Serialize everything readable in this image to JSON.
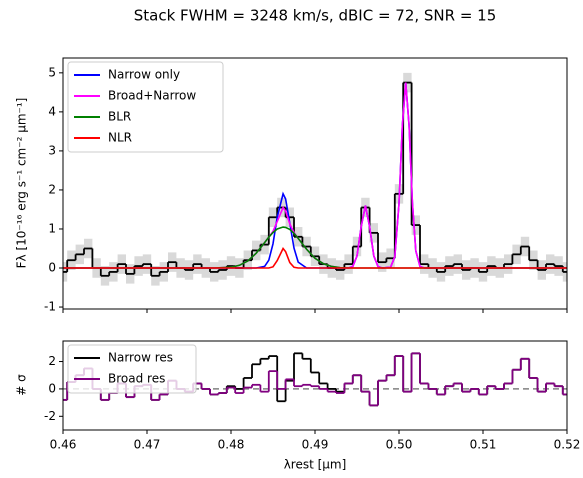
{
  "chart_data": [
    {
      "type": "line",
      "title": "Stack FWHM = 3248 km/s, dBIC = 72, SNR = 15",
      "y_label": "Fλ [10⁻¹⁶ erg s⁻¹ cm⁻² μm⁻¹]",
      "xlim": [
        0.46,
        0.52
      ],
      "ylim": [
        -1.05,
        5.38
      ],
      "yticks": [
        -1,
        0,
        1,
        2,
        3,
        4,
        5
      ],
      "legend": "upper left",
      "x": [
        0.46,
        0.476,
        0.478,
        0.48,
        0.481,
        0.482,
        0.483,
        0.484,
        0.4845,
        0.485,
        0.4855,
        0.4862,
        0.4865,
        0.487,
        0.4875,
        0.488,
        0.489,
        0.49,
        0.491,
        0.492,
        0.493,
        0.494,
        0.4945,
        0.495,
        0.4955,
        0.496,
        0.4965,
        0.497,
        0.4975,
        0.498,
        0.499,
        0.4995,
        0.5,
        0.5004,
        0.5008,
        0.5012,
        0.5016,
        0.502,
        0.5025,
        0.503,
        0.504,
        0.52
      ],
      "observed": {
        "color": "#000000",
        "error": 0.25,
        "x": [
          0.46,
          0.461,
          0.462,
          0.463,
          0.464,
          0.465,
          0.466,
          0.467,
          0.468,
          0.469,
          0.47,
          0.471,
          0.472,
          0.473,
          0.474,
          0.475,
          0.476,
          0.477,
          0.478,
          0.479,
          0.48,
          0.481,
          0.482,
          0.483,
          0.484,
          0.485,
          0.486,
          0.487,
          0.488,
          0.489,
          0.49,
          0.491,
          0.492,
          0.493,
          0.494,
          0.495,
          0.496,
          0.497,
          0.498,
          0.499,
          0.5,
          0.501,
          0.502,
          0.503,
          0.504,
          0.505,
          0.506,
          0.507,
          0.508,
          0.509,
          0.51,
          0.511,
          0.512,
          0.513,
          0.514,
          0.515,
          0.516,
          0.517,
          0.518,
          0.519,
          0.52
        ],
        "values": [
          -0.1,
          0.2,
          0.35,
          0.5,
          0.0,
          -0.2,
          -0.1,
          0.1,
          -0.15,
          0.05,
          0.1,
          -0.2,
          -0.1,
          0.15,
          0.0,
          -0.05,
          0.1,
          0.0,
          -0.1,
          -0.05,
          0.05,
          0.0,
          0.2,
          0.45,
          0.6,
          1.3,
          1.55,
          1.3,
          0.8,
          0.55,
          0.3,
          0.1,
          0.0,
          -0.05,
          0.1,
          0.55,
          1.55,
          0.9,
          0.15,
          0.25,
          1.9,
          4.75,
          1.1,
          0.1,
          0.0,
          -0.1,
          0.05,
          0.1,
          -0.05,
          0.0,
          -0.1,
          0.05,
          0.0,
          0.1,
          0.35,
          0.55,
          0.2,
          -0.05,
          0.1,
          0.05,
          -0.1
        ]
      },
      "series": [
        {
          "name": "Narrow only",
          "color": "#0000ff",
          "values": [
            0,
            0,
            0,
            0,
            0,
            0,
            0,
            0.04,
            0.2,
            0.62,
            1.3,
            1.9,
            1.77,
            1.15,
            0.51,
            0.15,
            0,
            0,
            0,
            0,
            0,
            0,
            0.04,
            0.31,
            1.06,
            1.6,
            1.06,
            0.31,
            0.04,
            0,
            0.02,
            0.29,
            1.65,
            3.65,
            4.75,
            3.65,
            1.65,
            0.44,
            0.04,
            0,
            0,
            0
          ]
        },
        {
          "name": "Broad+Narrow",
          "color": "#ff00ff",
          "values": [
            0,
            0,
            0,
            0.02,
            0.07,
            0.18,
            0.38,
            0.65,
            0.79,
            0.94,
            1.19,
            1.55,
            1.46,
            1.13,
            0.91,
            0.76,
            0.48,
            0.25,
            0.11,
            0.04,
            0.01,
            0,
            0.04,
            0.31,
            1.06,
            1.6,
            1.06,
            0.31,
            0.04,
            0,
            0.02,
            0.29,
            1.65,
            3.65,
            4.75,
            3.65,
            1.65,
            0.44,
            0.04,
            0,
            0,
            0
          ]
        },
        {
          "name": "BLR",
          "color": "#008000",
          "values": [
            0,
            0,
            0,
            0.02,
            0.07,
            0.18,
            0.38,
            0.65,
            0.79,
            0.91,
            1.0,
            1.05,
            1.04,
            0.99,
            0.89,
            0.76,
            0.48,
            0.25,
            0.11,
            0.04,
            0.01,
            0,
            0,
            0,
            0,
            0,
            0,
            0,
            0,
            0,
            0,
            0,
            0,
            0,
            0,
            0,
            0,
            0,
            0,
            0,
            0,
            0
          ]
        },
        {
          "name": "NLR",
          "color": "#ff0000",
          "values": [
            0,
            0,
            0,
            0,
            0,
            0,
            0,
            0,
            0,
            0.03,
            0.19,
            0.5,
            0.42,
            0.14,
            0.02,
            0,
            0,
            0,
            0,
            0,
            0,
            0,
            0,
            0,
            0,
            0,
            0,
            0,
            0,
            0,
            0,
            0,
            0,
            0,
            0,
            0,
            0,
            0,
            0,
            0,
            0,
            0
          ]
        }
      ]
    },
    {
      "type": "step",
      "x_label": "λrest [μm]",
      "y_label": "# σ",
      "xlim": [
        0.46,
        0.52
      ],
      "ylim": [
        -3.0,
        3.5
      ],
      "xticks": [
        0.46,
        0.47,
        0.48,
        0.49,
        {
          "value": 0.5,
          "label": "0.50"
        },
        0.51,
        0.52
      ],
      "yticks": [
        -2,
        0,
        2
      ],
      "reference_line": 0,
      "legend": "upper left",
      "x": [
        0.46,
        0.461,
        0.462,
        0.463,
        0.464,
        0.465,
        0.466,
        0.467,
        0.468,
        0.469,
        0.47,
        0.471,
        0.472,
        0.473,
        0.474,
        0.475,
        0.476,
        0.477,
        0.478,
        0.479,
        0.48,
        0.481,
        0.482,
        0.483,
        0.484,
        0.485,
        0.486,
        0.487,
        0.488,
        0.489,
        0.49,
        0.491,
        0.492,
        0.493,
        0.494,
        0.495,
        0.496,
        0.497,
        0.498,
        0.499,
        0.5,
        0.501,
        0.502,
        0.503,
        0.504,
        0.505,
        0.506,
        0.507,
        0.508,
        0.509,
        0.51,
        0.511,
        0.512,
        0.513,
        0.514,
        0.515,
        0.516,
        0.517,
        0.518,
        0.519,
        0.52
      ],
      "series": [
        {
          "name": "Narrow res",
          "color": "#000000",
          "values": [
            -0.8,
            0.5,
            1.0,
            1.5,
            0.0,
            -0.8,
            -0.3,
            0.4,
            -0.6,
            0.2,
            0.3,
            -0.8,
            -0.4,
            0.6,
            0.0,
            -0.2,
            0.4,
            0.0,
            -0.4,
            -0.3,
            0.2,
            0.0,
            0.8,
            1.8,
            2.2,
            2.4,
            -0.9,
            0.6,
            2.6,
            2.2,
            1.2,
            0.4,
            0.0,
            -0.2,
            0.4,
            1.0,
            -0.2,
            -1.2,
            0.6,
            1.0,
            2.4,
            -0.2,
            2.6,
            0.4,
            0.0,
            -0.4,
            0.2,
            0.4,
            -0.2,
            0.0,
            -0.4,
            0.2,
            0.0,
            0.4,
            1.4,
            2.2,
            0.8,
            -0.2,
            0.4,
            0.2,
            -0.4
          ]
        },
        {
          "name": "Broad res",
          "color": "#800080",
          "values": [
            -0.8,
            0.5,
            1.0,
            1.5,
            0.0,
            -0.8,
            -0.3,
            0.4,
            -0.6,
            0.2,
            0.3,
            -0.8,
            -0.4,
            0.6,
            0.0,
            -0.2,
            0.4,
            0.0,
            -0.4,
            -0.3,
            0.1,
            -0.3,
            0.1,
            0.3,
            -0.2,
            1.3,
            0.0,
            0.7,
            0.2,
            0.3,
            0.2,
            0.0,
            -0.2,
            -0.3,
            0.4,
            1.0,
            -0.2,
            -1.2,
            0.6,
            1.0,
            2.4,
            -0.2,
            2.6,
            0.4,
            0.0,
            -0.4,
            0.2,
            0.4,
            -0.2,
            0.0,
            -0.4,
            0.2,
            0.0,
            0.4,
            1.4,
            2.2,
            0.8,
            -0.2,
            0.4,
            0.2,
            -0.4
          ]
        }
      ]
    }
  ]
}
